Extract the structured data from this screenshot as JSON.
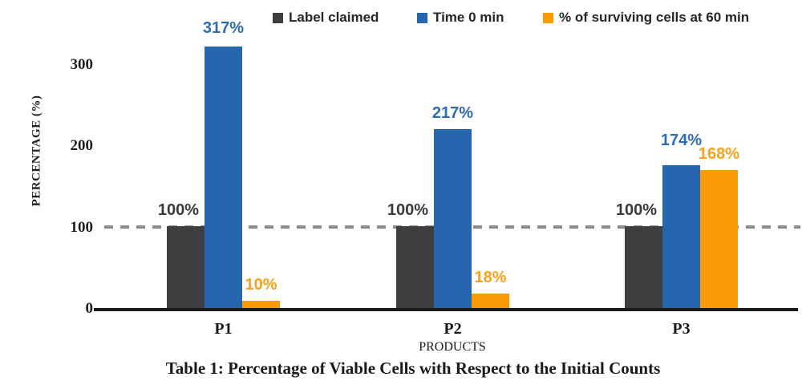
{
  "chart_data": {
    "type": "bar",
    "title": "",
    "xlabel": "PRODUCTS",
    "ylabel": "PERCENTAGE (%)",
    "categories": [
      "P1",
      "P2",
      "P3"
    ],
    "series": [
      {
        "name": "Label claimed",
        "values": [
          100,
          100,
          100
        ],
        "data_labels": [
          "100%",
          "100%",
          "100%"
        ],
        "color": "#3E3E40",
        "label_color": "#3A3A3C"
      },
      {
        "name": "Time 0 min",
        "values": [
          317,
          217,
          174
        ],
        "data_labels": [
          "317%",
          "217%",
          "174%"
        ],
        "color": "#2566AE",
        "label_color": "#2E6DB5"
      },
      {
        "name": "% of surviving cells at 60 min",
        "values": [
          10,
          18,
          168
        ],
        "data_labels": [
          "10%",
          "18%",
          "168%"
        ],
        "color": "#FA9B06",
        "label_color": "#FAA119"
      }
    ],
    "ylim": [
      0,
      330
    ],
    "yticks": [
      0,
      100,
      200,
      300
    ],
    "reference_line": {
      "value": 100,
      "style": "dashed",
      "color": "#8C8C8C"
    },
    "legend_position": "top",
    "grid": false,
    "layout_hints": {
      "label_dx": [
        -9,
        0,
        0
      ],
      "label_lift": [
        [
          9,
          9,
          9
        ],
        [
          12,
          9,
          20
        ],
        [
          9,
          9,
          9
        ]
      ]
    }
  },
  "caption": "Table 1: Percentage of Viable Cells with Respect to the Initial Counts"
}
